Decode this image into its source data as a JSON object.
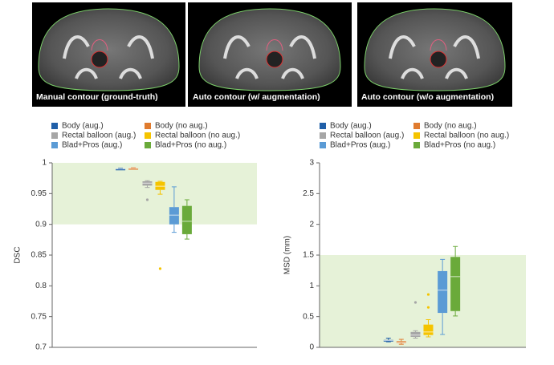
{
  "images": [
    {
      "caption": "Manual contour (ground-truth)"
    },
    {
      "caption": "Auto contour (w/ augmentation)"
    },
    {
      "caption": "Auto contour (w/o augmentation)"
    }
  ],
  "chart_data": [
    {
      "type": "box",
      "y_label": "DSC",
      "ylim": [
        0.7,
        1
      ],
      "yticks": [
        0.7,
        0.75,
        0.8,
        0.85,
        0.9,
        0.95,
        1
      ],
      "shaded_range": [
        0.9,
        1
      ],
      "shade_color": "#e6f2d8",
      "series": [
        {
          "name": "Body (aug.)",
          "color": "#1f5fa8",
          "min": 0.989,
          "q1": 0.9893,
          "median": 0.99,
          "q3": 0.9905,
          "max": 0.991,
          "outliers": []
        },
        {
          "name": "Body (no aug.)",
          "color": "#e07b2e",
          "min": 0.99,
          "q1": 0.9905,
          "median": 0.991,
          "q3": 0.9915,
          "max": 0.992,
          "outliers": []
        },
        {
          "name": "Rectal balloon (aug.)",
          "color": "#a6a6a6",
          "min": 0.96,
          "q1": 0.963,
          "median": 0.967,
          "q3": 0.97,
          "max": 0.971,
          "outliers": [
            0.94
          ]
        },
        {
          "name": "Rectal balloon (no aug.)",
          "color": "#f5c400",
          "min": 0.949,
          "q1": 0.956,
          "median": 0.962,
          "q3": 0.969,
          "max": 0.97,
          "outliers": [
            0.828
          ]
        },
        {
          "name": "Blad+Pros (aug.)",
          "color": "#5b9bd5",
          "min": 0.887,
          "q1": 0.9,
          "median": 0.915,
          "q3": 0.928,
          "max": 0.961,
          "outliers": []
        },
        {
          "name": "Blad+Pros (no aug.)",
          "color": "#6aaa3a",
          "min": 0.876,
          "q1": 0.884,
          "median": 0.905,
          "q3": 0.93,
          "max": 0.94,
          "outliers": []
        }
      ]
    },
    {
      "type": "box",
      "y_label": "MSD (mm)",
      "ylim": [
        0,
        3
      ],
      "yticks": [
        0,
        0.5,
        1,
        1.5,
        2,
        2.5,
        3
      ],
      "shaded_range": [
        0,
        1.5
      ],
      "shade_color": "#e6f2d8",
      "series": [
        {
          "name": "Body (aug.)",
          "color": "#1f5fa8",
          "min": 0.09,
          "q1": 0.1,
          "median": 0.11,
          "q3": 0.12,
          "max": 0.15,
          "outliers": []
        },
        {
          "name": "Body (no aug.)",
          "color": "#e07b2e",
          "min": 0.05,
          "q1": 0.07,
          "median": 0.08,
          "q3": 0.1,
          "max": 0.13,
          "outliers": []
        },
        {
          "name": "Rectal balloon (aug.)",
          "color": "#a6a6a6",
          "min": 0.15,
          "q1": 0.17,
          "median": 0.2,
          "q3": 0.25,
          "max": 0.27,
          "outliers": [
            0.73
          ]
        },
        {
          "name": "Rectal balloon (no aug.)",
          "color": "#f5c400",
          "min": 0.17,
          "q1": 0.2,
          "median": 0.25,
          "q3": 0.37,
          "max": 0.45,
          "outliers": [
            0.65,
            0.86
          ]
        },
        {
          "name": "Blad+Pros (aug.)",
          "color": "#5b9bd5",
          "min": 0.21,
          "q1": 0.56,
          "median": 0.93,
          "q3": 1.24,
          "max": 1.43,
          "outliers": []
        },
        {
          "name": "Blad+Pros (no aug.)",
          "color": "#6aaa3a",
          "min": 0.51,
          "q1": 0.59,
          "median": 1.15,
          "q3": 1.47,
          "max": 1.64,
          "outliers": []
        }
      ]
    }
  ]
}
